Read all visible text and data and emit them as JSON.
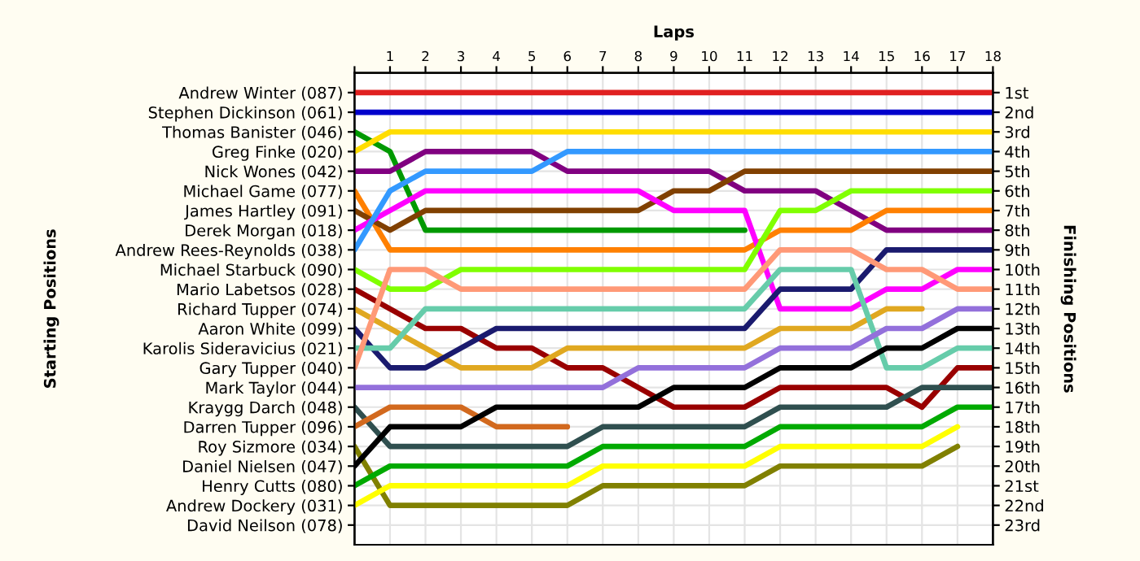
{
  "chart_data": {
    "type": "line",
    "xlabel": "Laps",
    "y2label": "Finishing Positions",
    "x": [
      0,
      1,
      2,
      3,
      4,
      5,
      6,
      7,
      8,
      9,
      10,
      11,
      12,
      13,
      14,
      15,
      16,
      17,
      18
    ],
    "xlim": [
      0,
      18
    ],
    "xticks": [
      {
        "value": 0,
        "label": null
      },
      1,
      2,
      3,
      4,
      5,
      6,
      7,
      8,
      9,
      10,
      11,
      12,
      13,
      14,
      15,
      16,
      17,
      18
    ],
    "annotations": [
      "Starting Positions",
      "Andrew Winter (087)",
      "Stephen Dickinson (061)",
      "Thomas Banister (046)",
      "Greg Finke (020)",
      "Nick Wones (042)",
      "Michael Game (077)",
      "James Hartley (091)",
      "Derek Morgan (018)",
      "Andrew Rees-Reynolds (038)",
      "Michael Starbuck (090)",
      "Mario Labetsos (028)",
      "Richard Tupper (074)",
      "Aaron White (099)",
      "Karolis Sideravicius (021)",
      "Gary Tupper (040)",
      "Mark Taylor (044)",
      "Kraygg Darch (048)",
      "Darren Tupper (096)",
      "Roy Sizmore (034)",
      "Daniel Nielsen (047)",
      "Henry Cutts (080)",
      "Andrew Dockery (031)",
      "David Neilson (078)"
    ],
    "y2lim": [
      24,
      0
    ],
    "y2ticks": [
      {
        "value": 1,
        "label": "1st"
      },
      {
        "value": 2,
        "label": "2nd"
      },
      {
        "value": 3,
        "label": "3rd"
      },
      {
        "value": 4,
        "label": "4th"
      },
      {
        "value": 5,
        "label": "5th"
      },
      {
        "value": 6,
        "label": "6th"
      },
      {
        "value": 7,
        "label": "7th"
      },
      {
        "value": 8,
        "label": "8th"
      },
      {
        "value": 9,
        "label": "9th"
      },
      {
        "value": 10,
        "label": "10th"
      },
      {
        "value": 11,
        "label": "11th"
      },
      {
        "value": 12,
        "label": "12th"
      },
      {
        "value": 13,
        "label": "13th"
      },
      {
        "value": 14,
        "label": "14th"
      },
      {
        "value": 15,
        "label": "15th"
      },
      {
        "value": 16,
        "label": "16th"
      },
      {
        "value": 17,
        "label": "17th"
      },
      {
        "value": 18,
        "label": "18th"
      },
      {
        "value": 19,
        "label": "19th"
      },
      {
        "value": 20,
        "label": "20th"
      },
      {
        "value": 21,
        "label": "21st"
      },
      {
        "value": 22,
        "label": "22nd"
      },
      {
        "value": 23,
        "label": "23rd"
      }
    ],
    "grid": true,
    "marker": "none",
    "line_style": "solid",
    "series": [
      {
        "axis": "y2",
        "color": "#e02020",
        "values": [
          1,
          1,
          1,
          1,
          1,
          1,
          1,
          1,
          1,
          1,
          1,
          1,
          1,
          1,
          1,
          1,
          1,
          1,
          1
        ]
      },
      {
        "axis": "y2",
        "color": "#0000cc",
        "values": [
          2,
          2,
          2,
          2,
          2,
          2,
          2,
          2,
          2,
          2,
          2,
          2,
          2,
          2,
          2,
          2,
          2,
          2,
          2
        ]
      },
      {
        "axis": "y2",
        "color": "#009900",
        "values": [
          3,
          4,
          8,
          8,
          8,
          8,
          8,
          8,
          8,
          8,
          8,
          8,
          null,
          null,
          null,
          null,
          null,
          null,
          null
        ]
      },
      {
        "axis": "y2",
        "color": "#ffdd00",
        "values": [
          4,
          3,
          3,
          3,
          3,
          3,
          3,
          3,
          3,
          3,
          3,
          3,
          3,
          3,
          3,
          3,
          3,
          3,
          3
        ]
      },
      {
        "axis": "y2",
        "color": "#800080",
        "values": [
          5,
          5,
          4,
          4,
          4,
          4,
          5,
          5,
          5,
          5,
          5,
          6,
          6,
          6,
          7,
          8,
          8,
          8,
          8
        ]
      },
      {
        "axis": "y2",
        "color": "#ff8000",
        "values": [
          6,
          9,
          9,
          9,
          9,
          9,
          9,
          9,
          9,
          9,
          9,
          9,
          8,
          8,
          8,
          7,
          7,
          7,
          7
        ]
      },
      {
        "axis": "y2",
        "color": "#804000",
        "values": [
          7,
          8,
          7,
          7,
          7,
          7,
          7,
          7,
          7,
          6,
          6,
          5,
          5,
          5,
          5,
          5,
          5,
          5,
          5
        ]
      },
      {
        "axis": "y2",
        "color": "#ff00ff",
        "values": [
          8,
          7,
          6,
          6,
          6,
          6,
          6,
          6,
          6,
          7,
          7,
          7,
          12,
          12,
          12,
          11,
          11,
          10,
          10
        ]
      },
      {
        "axis": "y2",
        "color": "#3399ff",
        "values": [
          9,
          6,
          5,
          5,
          5,
          5,
          4,
          4,
          4,
          4,
          4,
          4,
          4,
          4,
          4,
          4,
          4,
          4,
          4
        ]
      },
      {
        "axis": "y2",
        "color": "#80ff00",
        "values": [
          10,
          11,
          11,
          10,
          10,
          10,
          10,
          10,
          10,
          10,
          10,
          10,
          7,
          7,
          6,
          6,
          6,
          6,
          6
        ]
      },
      {
        "axis": "y2",
        "color": "#990000",
        "values": [
          11,
          12,
          13,
          13,
          14,
          14,
          15,
          15,
          16,
          17,
          17,
          17,
          16,
          16,
          16,
          16,
          17,
          15,
          15
        ]
      },
      {
        "axis": "y2",
        "color": "#e0a820",
        "values": [
          12,
          13,
          14,
          15,
          15,
          15,
          14,
          14,
          14,
          14,
          14,
          14,
          13,
          13,
          13,
          12,
          12,
          null,
          null
        ]
      },
      {
        "axis": "y2",
        "color": "#1a1a6e",
        "values": [
          13,
          15,
          15,
          14,
          13,
          13,
          13,
          13,
          13,
          13,
          13,
          13,
          11,
          11,
          11,
          9,
          9,
          9,
          9
        ]
      },
      {
        "axis": "y2",
        "color": "#66ccaa",
        "values": [
          14,
          14,
          12,
          12,
          12,
          12,
          12,
          12,
          12,
          12,
          12,
          12,
          10,
          10,
          10,
          15,
          15,
          14,
          14
        ]
      },
      {
        "axis": "y2",
        "color": "#ff9977",
        "values": [
          15,
          10,
          10,
          11,
          11,
          11,
          11,
          11,
          11,
          11,
          11,
          11,
          9,
          9,
          9,
          10,
          10,
          11,
          11
        ]
      },
      {
        "axis": "y2",
        "color": "#9370db",
        "values": [
          16,
          16,
          16,
          16,
          16,
          16,
          16,
          16,
          15,
          15,
          15,
          15,
          14,
          14,
          14,
          13,
          13,
          12,
          12
        ]
      },
      {
        "axis": "y2",
        "color": "#2f4f4f",
        "values": [
          17,
          19,
          19,
          19,
          19,
          19,
          19,
          18,
          18,
          18,
          18,
          18,
          17,
          17,
          17,
          17,
          16,
          16,
          16
        ]
      },
      {
        "axis": "y2",
        "color": "#d2691e",
        "values": [
          18,
          17,
          17,
          17,
          18,
          18,
          18,
          null,
          null,
          null,
          null,
          null,
          null,
          null,
          null,
          null,
          null,
          null,
          null
        ]
      },
      {
        "axis": "y2",
        "color": "#808000",
        "values": [
          19,
          22,
          22,
          22,
          22,
          22,
          22,
          21,
          21,
          21,
          21,
          21,
          20,
          20,
          20,
          20,
          20,
          19,
          null
        ]
      },
      {
        "axis": "y2",
        "color": "#000000",
        "values": [
          20,
          18,
          18,
          18,
          17,
          17,
          17,
          17,
          17,
          16,
          16,
          16,
          15,
          15,
          15,
          14,
          14,
          13,
          13
        ]
      },
      {
        "axis": "y2",
        "color": "#00aa00",
        "values": [
          21,
          20,
          20,
          20,
          20,
          20,
          20,
          19,
          19,
          19,
          19,
          19,
          18,
          18,
          18,
          18,
          18,
          17,
          17
        ]
      },
      {
        "axis": "y2",
        "color": "#ffff00",
        "values": [
          22,
          21,
          21,
          21,
          21,
          21,
          21,
          20,
          20,
          20,
          20,
          20,
          19,
          19,
          19,
          19,
          19,
          18,
          null
        ]
      }
    ]
  }
}
